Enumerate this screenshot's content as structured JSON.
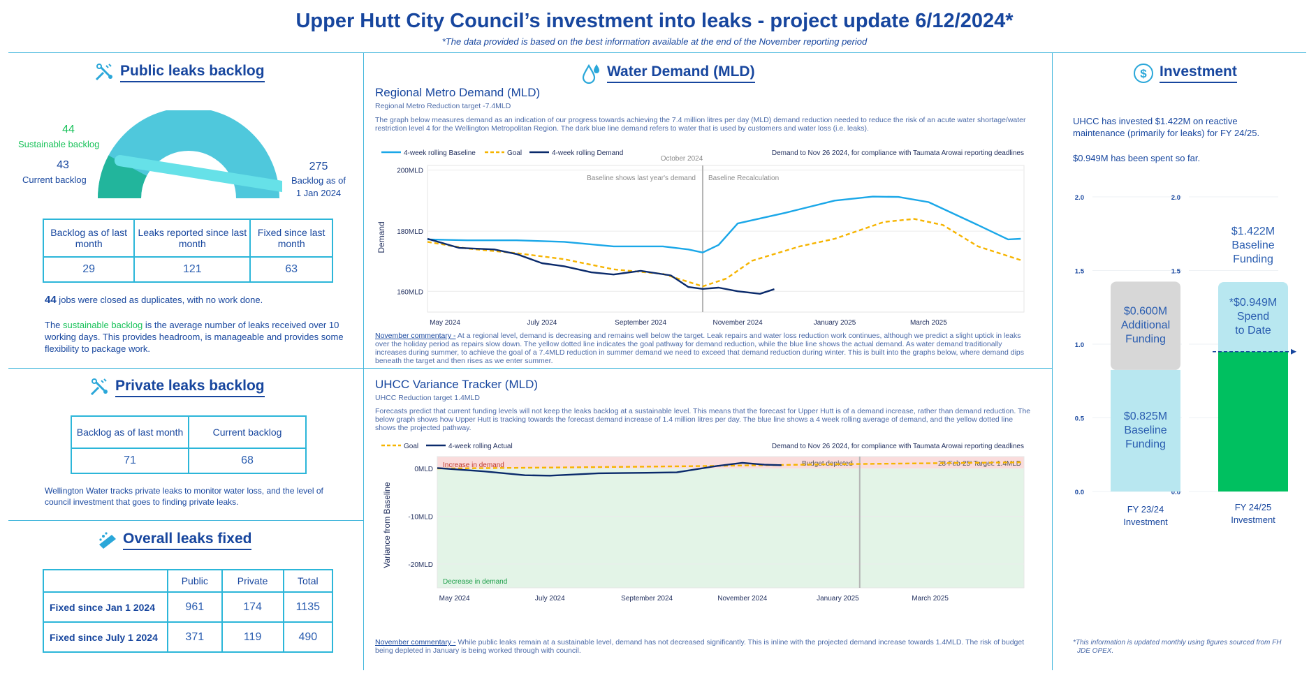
{
  "header": {
    "title": "Upper Hutt City Council’s investment into leaks - project update 6/12/2024*",
    "subtitle": "*The data provided is based on the best information available at the end of the November reporting period"
  },
  "public_backlog": {
    "title": "Public leaks backlog",
    "sustainable_value": "44",
    "sustainable_label": "Sustainable backlog",
    "current_value": "43",
    "current_label": "Current backlog",
    "jan_value": "275",
    "jan_label_1": "Backlog as of",
    "jan_label_2": "1 Jan 2024",
    "gauge": {
      "min": 0,
      "max": 275,
      "current": 43,
      "sustainable": 44
    },
    "table_headers": [
      "Backlog as of last month",
      "Leaks reported since last month",
      "Fixed since last month"
    ],
    "table_values": [
      "29",
      "121",
      "63"
    ],
    "duplicates_count": "44",
    "duplicates_text": " jobs were closed as duplicates, with no work done.",
    "note_pre": "The ",
    "note_highlight": "sustainable backlog",
    "note_post": " is the average number of leaks received over 10 working days. This provides headroom, is manageable and provides some flexibility to package work."
  },
  "private_backlog": {
    "title": "Private leaks backlog",
    "table_headers": [
      "Backlog as of last month",
      "Current backlog"
    ],
    "table_values": [
      "71",
      "68"
    ],
    "note": "Wellington Water tracks private leaks to monitor water loss, and the level of council investment that goes to finding private leaks."
  },
  "overall_fixed": {
    "title": "Overall leaks fixed",
    "columns": [
      "Public",
      "Private",
      "Total"
    ],
    "rows": [
      {
        "label": "Fixed since Jan 1 2024",
        "values": [
          "961",
          "174",
          "1135"
        ]
      },
      {
        "label": "Fixed since July 1 2024",
        "values": [
          "371",
          "119",
          "490"
        ]
      }
    ]
  },
  "water_demand": {
    "title": "Water Demand (MLD)",
    "regional": {
      "title": "Regional Metro Demand (MLD)",
      "subtitle": "Regional Metro Reduction target -7.4MLD",
      "description": "The graph below measures demand as an indication of our progress towards achieving the 7.4 million litres per day (MLD) demand reduction needed to reduce the risk of an acute water shortage/water restriction level 4 for the Wellington Metropolitan Region. The dark blue line demand refers to water that is used by customers and water loss (i.e. leaks).",
      "commentary_label": "November commentary -",
      "commentary": " At a regional level, demand is decreasing and remains well below the target. Leak repairs and water loss reduction work continues, although we predict a slight uptick in leaks over the holiday period as repairs slow down. The yellow dotted line indicates the goal pathway for demand reduction, while the blue line shows the actual demand. As water demand traditionally increases during summer, to achieve the goal of a 7.4MLD reduction in summer demand we need to exceed that demand reduction during winter. This is built into the graphs below, where demand dips beneath the target and then rises as we enter summer."
    },
    "uhcc": {
      "title": "UHCC Variance Tracker (MLD)",
      "subtitle": "UHCC Reduction target 1.4MLD",
      "description": "Forecasts predict that current funding levels will not keep the leaks backlog at a sustainable level. This means that the forecast for Upper Hutt is of a demand increase, rather than demand reduction. The below graph shows how Upper Hutt is tracking towards the forecast demand increase of 1.4 million litres per day. The blue line shows a 4 week rolling average of demand, and the yellow dotted line shows the projected pathway.",
      "commentary_label": "November commentary -",
      "commentary": " While public leaks remain at a sustainable level, demand has not decreased significantly. This is inline with the projected demand increase towards 1.4MLD. The risk of budget being depleted in January is being worked through with council."
    }
  },
  "investment": {
    "title": "Investment",
    "text1": "UHCC has invested $1.422M on reactive maintenance (primarily for leaks) for FY 24/25.",
    "text2": "$0.949M has been spent so far.",
    "footnote_1": "*This information is updated monthly using figures sourced from FH",
    "footnote_2": "JDE OPEX."
  },
  "chart_data": [
    {
      "type": "line",
      "title": "Regional Metro Demand (MLD)",
      "ylabel": "Demand",
      "ylim": [
        152,
        200
      ],
      "y_ticks": [
        "200MLD",
        "180MLD",
        "160MLD"
      ],
      "x_ticks": [
        "May 2024",
        "July 2024",
        "September 2024",
        "November 2024",
        "January 2025",
        "March 2025"
      ],
      "x_domain": [
        "2024-04-20",
        "2025-04-30"
      ],
      "legend_position": "top-left",
      "legend": [
        "4-week rolling Baseline",
        "Goal",
        "4-week rolling Demand"
      ],
      "header_note": "Demand to Nov 26 2024, for compliance with Taumata Arowai reporting deadlines",
      "annotations": [
        "October 2024",
        "Baseline shows last year's demand",
        "Baseline Recalculation"
      ],
      "reference_date": "2024-10-10",
      "series": [
        {
          "name": "4-week rolling Baseline",
          "color": "#1aa7e8",
          "dash": false,
          "x": [
            "2024-04-20",
            "2024-05-15",
            "2024-06-15",
            "2024-07-15",
            "2024-08-15",
            "2024-09-15",
            "2024-10-01",
            "2024-10-10",
            "2024-10-20",
            "2024-11-01",
            "2024-12-01",
            "2025-01-01",
            "2025-01-25",
            "2025-02-10",
            "2025-03-01",
            "2025-04-01",
            "2025-04-20",
            "2025-04-28"
          ],
          "y": [
            175.8,
            175.5,
            175.5,
            175.0,
            173.5,
            173.5,
            172.5,
            171.5,
            174,
            181,
            184.5,
            188.5,
            189.8,
            189.7,
            188,
            180.5,
            175.8,
            176
          ]
        },
        {
          "name": "Goal",
          "color": "#f6b400",
          "dash": true,
          "x": [
            "2024-04-20",
            "2024-05-15",
            "2024-06-15",
            "2024-07-15",
            "2024-08-15",
            "2024-09-15",
            "2024-10-10",
            "2024-10-25",
            "2024-11-10",
            "2024-12-10",
            "2025-01-01",
            "2025-02-01",
            "2025-02-20",
            "2025-03-10",
            "2025-04-01",
            "2025-04-28"
          ],
          "y": [
            175.0,
            172.8,
            171.3,
            169.3,
            166.0,
            164.5,
            160.4,
            163.0,
            168.8,
            173.5,
            176.0,
            181.5,
            182.5,
            180.5,
            173.5,
            169.0
          ]
        },
        {
          "name": "4-week rolling Demand",
          "color": "#0a2a6b",
          "dash": false,
          "x": [
            "2024-04-20",
            "2024-05-10",
            "2024-06-01",
            "2024-06-15",
            "2024-07-01",
            "2024-07-15",
            "2024-08-01",
            "2024-08-15",
            "2024-09-01",
            "2024-09-20",
            "2024-10-01",
            "2024-10-10",
            "2024-10-20",
            "2024-11-01",
            "2024-11-15",
            "2024-11-24"
          ],
          "y": [
            176.0,
            173.0,
            172.5,
            171.0,
            168.0,
            167.0,
            165.0,
            164.3,
            165.5,
            164.0,
            160.2,
            159.6,
            160.0,
            158.8,
            158.0,
            159.5
          ]
        }
      ]
    },
    {
      "type": "line",
      "title": "UHCC Variance Tracker (MLD)",
      "ylabel": "Variance from Baseline",
      "ylim": [
        -25,
        2.5
      ],
      "y_ticks": [
        "0MLD",
        "-10MLD",
        "-20MLD"
      ],
      "x_ticks": [
        "May 2024",
        "July 2024",
        "September 2024",
        "November 2024",
        "January 2025",
        "March 2025"
      ],
      "x_domain": [
        "2024-04-20",
        "2025-04-30"
      ],
      "legend_position": "top-left",
      "legend": [
        "Goal",
        "4-week rolling Actual"
      ],
      "header_note": "Demand to Nov 26 2024, for compliance with Taumata Arowai reporting deadlines",
      "annotations": [
        "Increase in demand",
        "Decrease in demand",
        "Budget depleted",
        "28-Feb-25' Target: 1.4MLD"
      ],
      "reference_date": "2025-01-15",
      "series": [
        {
          "name": "Goal",
          "color": "#f6b400",
          "dash": true,
          "x": [
            "2024-04-20",
            "2024-07-01",
            "2024-10-01",
            "2025-01-01",
            "2025-04-28"
          ],
          "y": [
            0.0,
            0.2,
            0.5,
            0.9,
            1.3
          ]
        },
        {
          "name": "4-week rolling Actual",
          "color": "#0a2a6b",
          "dash": false,
          "x": [
            "2024-04-20",
            "2024-05-20",
            "2024-06-15",
            "2024-07-01",
            "2024-08-01",
            "2024-09-01",
            "2024-09-20",
            "2024-10-15",
            "2024-11-01",
            "2024-11-15",
            "2024-11-26"
          ],
          "y": [
            0.1,
            -0.6,
            -1.4,
            -1.5,
            -1.0,
            -0.9,
            -0.8,
            0.5,
            1.2,
            0.8,
            0.7
          ]
        }
      ]
    },
    {
      "type": "bar",
      "title": "",
      "categories": [
        "FY 23/24 Investment",
        "FY 24/25 Investment"
      ],
      "ylim": [
        0,
        2.0
      ],
      "y_ticks": [
        "2.0",
        "1.5",
        "1.0",
        "0.5",
        "0.0"
      ],
      "series": [
        {
          "name": "Baseline Funding",
          "values": [
            0.825,
            null
          ],
          "label": "$0.825M Baseline Funding",
          "color": "#b8e7f0"
        },
        {
          "name": "Additional Funding",
          "values": [
            0.6,
            null
          ],
          "label": "$0.600M Additional Funding",
          "color": "#d7d7d7"
        },
        {
          "name": "Spend to Date",
          "values": [
            null,
            0.949
          ],
          "label": "*$0.949M Spend to Date",
          "color": "#00c060"
        },
        {
          "name": "Baseline Funding",
          "values": [
            null,
            1.422
          ],
          "label": "$1.422M Baseline Funding",
          "color": "#b8e7f0"
        }
      ],
      "labels": {
        "fy23_base": "$0.825M Baseline Funding",
        "fy23_add": "$0.600M Additional Funding",
        "fy24_spend": "*$0.949M Spend to Date",
        "fy24_total": "$1.422M Baseline Funding",
        "cat1_l1": "FY 23/24",
        "cat1_l2": "Investment",
        "cat2_l1": "FY 24/25",
        "cat2_l2": "Investment"
      }
    }
  ]
}
